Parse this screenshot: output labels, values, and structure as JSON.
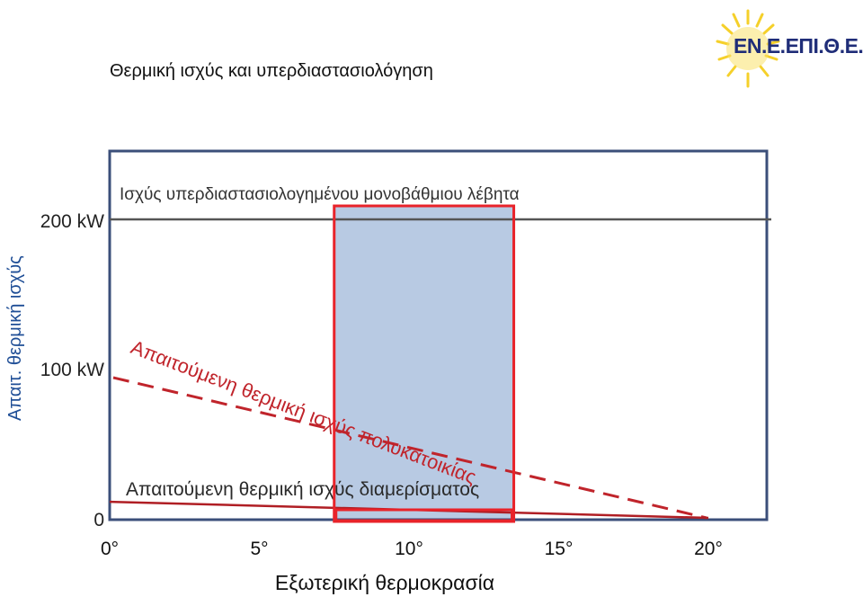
{
  "slide": {
    "title": "Θερμική ισχύς και υπερδιαστασιολόγηση",
    "logo_text": "ΕΝ.Ε.ΕΠΙ.Θ.Ε."
  },
  "chart_data": {
    "type": "line",
    "xlabel": "Εξωτερική θερμοκρασία",
    "ylabel": "Απαιτ. θερμική ισχύς",
    "x_ticks": [
      "0°",
      "5°",
      "10°",
      "15°",
      "20°"
    ],
    "y_ticks": [
      {
        "value": 0,
        "label": "0"
      },
      {
        "value": 100,
        "label": "100 kW"
      },
      {
        "value": 200,
        "label": "200 kW"
      }
    ],
    "xlim": [
      0,
      20
    ],
    "ylim": [
      0,
      200
    ],
    "series": [
      {
        "name": "Ισχύς υπερδιαστασιολογημένου μονοβάθμιου λέβητα",
        "style": "solid",
        "color": "#555555",
        "x": [
          0,
          22
        ],
        "y": [
          200,
          200
        ]
      },
      {
        "name": "Απαιτούμενη θερμική ισχύς πολυκατοικίας",
        "style": "dashed",
        "color": "#c0242b",
        "x": [
          0,
          20
        ],
        "y": [
          100,
          0
        ]
      },
      {
        "name": "Απαιτούμενη θερμική ισχύς διαμερίσματος",
        "style": "solid",
        "color": "#b01e24",
        "x": [
          0,
          20
        ],
        "y": [
          12,
          0
        ]
      }
    ],
    "highlight_range": {
      "x": [
        7.5,
        13.5
      ],
      "fill": "#b8cae3",
      "stroke": "#e8232a"
    },
    "colors": {
      "frame": "#3b4f7a",
      "axis_text": "#111111",
      "y_axis_title": "#1f4e96"
    }
  }
}
